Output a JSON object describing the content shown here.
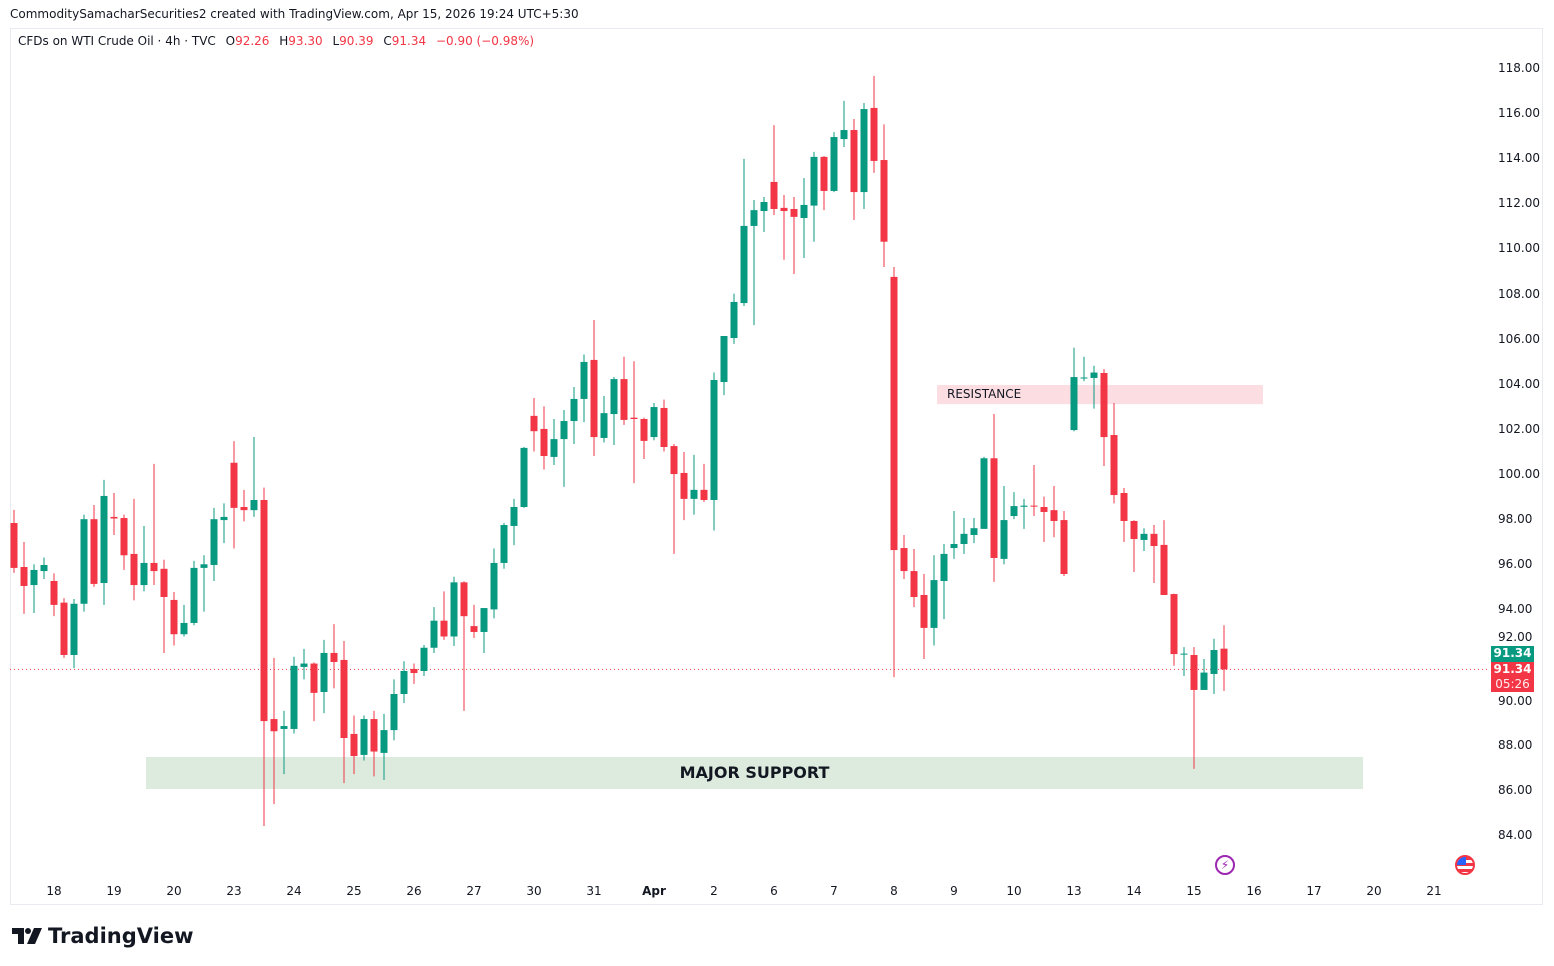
{
  "caption": "CommoditySamacharSecurities2 created with TradingView.com, Apr 15, 2026 19:24 UTC+5:30",
  "legend": {
    "symbol": "CFDs on WTI Crude Oil · 4h · TVC",
    "o_label": "O",
    "o": "92.26",
    "h_label": "H",
    "h": "93.30",
    "l_label": "L",
    "l": "90.39",
    "c_label": "C",
    "c": "91.34",
    "change": "−0.90 (−0.98%)"
  },
  "price_tags": {
    "bid": "91.34",
    "last": "91.34",
    "countdown": "05:26"
  },
  "logo_text": "TradingView",
  "colors": {
    "up": "#089981",
    "down": "#f23645",
    "resistance": "#fcdde2",
    "support": "#dcebdd"
  },
  "chart_data": {
    "type": "candlestick",
    "title": "CFDs on WTI Crude Oil · 4h · TVC",
    "ylim": [
      84,
      118
    ],
    "yticks": [
      "84.00",
      "86.00",
      "88.00",
      "90.00",
      "92.00",
      "94.00",
      "96.00",
      "98.00",
      "100.00",
      "102.00",
      "104.00",
      "106.00",
      "108.00",
      "110.00",
      "112.00",
      "114.00",
      "116.00",
      "118.00"
    ],
    "xticks": [
      {
        "label": "18",
        "bar": 4
      },
      {
        "label": "19",
        "bar": 10
      },
      {
        "label": "20",
        "bar": 16
      },
      {
        "label": "23",
        "bar": 22
      },
      {
        "label": "24",
        "bar": 28
      },
      {
        "label": "25",
        "bar": 34
      },
      {
        "label": "26",
        "bar": 40
      },
      {
        "label": "27",
        "bar": 46
      },
      {
        "label": "30",
        "bar": 52
      },
      {
        "label": "31",
        "bar": 58
      },
      {
        "label": "Apr",
        "bar": 64,
        "bold": true
      },
      {
        "label": "2",
        "bar": 70
      },
      {
        "label": "6",
        "bar": 76
      },
      {
        "label": "7",
        "bar": 82
      },
      {
        "label": "8",
        "bar": 88
      },
      {
        "label": "9",
        "bar": 94
      },
      {
        "label": "10",
        "bar": 100
      },
      {
        "label": "13",
        "bar": 106
      },
      {
        "label": "14",
        "bar": 112
      },
      {
        "label": "15",
        "bar": 118
      },
      {
        "label": "16",
        "bar": 124
      },
      {
        "label": "17",
        "bar": 130
      },
      {
        "label": "20",
        "bar": 136
      },
      {
        "label": "21",
        "bar": 142
      }
    ],
    "last_price": 91.34,
    "zones": [
      {
        "label": "RESISTANCE",
        "from": 103.1,
        "to": 103.95,
        "start_bar": 92.3,
        "end_bar": 124.9,
        "kind": "resistance"
      },
      {
        "label": "MAJOR SUPPORT",
        "from": 86.04,
        "to": 87.46,
        "start_bar": 13.2,
        "end_bar": 134.9,
        "kind": "support"
      }
    ],
    "ohlc": [
      [
        97.83,
        98.41,
        95.62,
        95.84
      ],
      [
        95.88,
        96.99,
        93.8,
        95.04
      ],
      [
        95.08,
        96.0,
        93.84,
        95.75
      ],
      [
        95.7,
        96.3,
        95.35,
        95.97
      ],
      [
        95.26,
        95.6,
        93.7,
        94.2
      ],
      [
        94.3,
        94.5,
        91.85,
        91.98
      ],
      [
        91.98,
        94.46,
        91.4,
        94.25
      ],
      [
        94.25,
        98.2,
        93.9,
        98.0
      ],
      [
        98.0,
        98.63,
        95.0,
        95.13
      ],
      [
        95.17,
        99.74,
        94.2,
        99.03
      ],
      [
        98.1,
        99.16,
        97.3,
        98.03
      ],
      [
        98.05,
        98.2,
        95.75,
        96.4
      ],
      [
        96.46,
        98.9,
        94.4,
        95.08
      ],
      [
        95.08,
        97.7,
        94.8,
        96.06
      ],
      [
        96.06,
        100.45,
        95.08,
        95.7
      ],
      [
        95.8,
        96.2,
        92.07,
        94.55
      ],
      [
        94.42,
        94.77,
        92.4,
        92.9
      ],
      [
        92.9,
        94.2,
        92.8,
        93.4
      ],
      [
        93.4,
        96.15,
        93.3,
        95.84
      ],
      [
        95.84,
        96.4,
        93.9,
        96.0
      ],
      [
        95.97,
        98.5,
        95.26,
        98.0
      ],
      [
        97.96,
        98.7,
        96.94,
        98.1
      ],
      [
        100.5,
        101.46,
        96.7,
        98.5
      ],
      [
        98.54,
        99.3,
        97.9,
        98.4
      ],
      [
        98.4,
        101.64,
        98.1,
        98.85
      ],
      [
        98.85,
        99.4,
        84.4,
        89.05
      ],
      [
        89.14,
        91.85,
        85.37,
        88.6
      ],
      [
        88.7,
        89.5,
        86.7,
        88.83
      ],
      [
        88.7,
        91.9,
        88.5,
        91.5
      ],
      [
        91.45,
        92.25,
        90.9,
        91.6
      ],
      [
        91.6,
        91.65,
        89.05,
        90.3
      ],
      [
        90.34,
        92.65,
        89.4,
        92.07
      ],
      [
        92.07,
        93.35,
        90.5,
        91.67
      ],
      [
        91.76,
        92.6,
        86.3,
        88.3
      ],
      [
        88.48,
        89.3,
        86.7,
        87.5
      ],
      [
        87.55,
        89.3,
        87.3,
        89.14
      ],
      [
        89.14,
        89.5,
        86.6,
        87.7
      ],
      [
        87.64,
        89.37,
        86.44,
        88.65
      ],
      [
        88.65,
        90.9,
        88.2,
        90.25
      ],
      [
        90.25,
        91.7,
        89.85,
        91.27
      ],
      [
        91.36,
        91.6,
        90.7,
        91.18
      ],
      [
        91.27,
        92.42,
        91.05,
        92.3
      ],
      [
        92.3,
        94.1,
        92.07,
        93.5
      ],
      [
        93.5,
        94.8,
        92.65,
        92.8
      ],
      [
        92.8,
        95.45,
        92.38,
        95.2
      ],
      [
        95.2,
        95.25,
        89.5,
        93.7
      ],
      [
        93.26,
        94.2,
        92.73,
        93.0
      ],
      [
        93.0,
        94.06,
        92.07,
        94.06
      ],
      [
        94.0,
        96.7,
        93.6,
        96.06
      ],
      [
        96.06,
        97.83,
        95.8,
        97.74
      ],
      [
        97.7,
        98.9,
        96.85,
        98.54
      ],
      [
        98.54,
        101.2,
        98.5,
        101.16
      ],
      [
        102.58,
        103.37,
        101.0,
        101.9
      ],
      [
        102.0,
        103.0,
        100.2,
        100.8
      ],
      [
        100.76,
        102.44,
        100.4,
        101.55
      ],
      [
        101.55,
        102.84,
        99.43,
        102.35
      ],
      [
        102.35,
        103.86,
        101.33,
        103.33
      ],
      [
        103.33,
        105.3,
        102.3,
        104.97
      ],
      [
        105.06,
        106.83,
        100.8,
        101.64
      ],
      [
        101.6,
        103.46,
        101.4,
        102.7
      ],
      [
        102.66,
        104.3,
        101.29,
        104.21
      ],
      [
        104.21,
        105.2,
        102.18,
        102.4
      ],
      [
        102.5,
        105.0,
        99.6,
        102.44
      ],
      [
        102.44,
        102.5,
        100.67,
        101.47
      ],
      [
        101.64,
        103.15,
        101.5,
        102.97
      ],
      [
        102.93,
        103.3,
        101.0,
        101.2
      ],
      [
        101.24,
        101.33,
        96.46,
        100.0
      ],
      [
        100.05,
        100.98,
        97.96,
        98.9
      ],
      [
        98.9,
        100.85,
        98.2,
        99.3
      ],
      [
        99.3,
        100.45,
        98.76,
        98.85
      ],
      [
        98.85,
        104.5,
        97.5,
        104.17
      ],
      [
        104.08,
        106.12,
        103.5,
        106.12
      ],
      [
        106.03,
        108.0,
        105.77,
        107.63
      ],
      [
        107.58,
        113.97,
        107.45,
        111.0
      ],
      [
        111.0,
        112.15,
        106.6,
        111.7
      ],
      [
        111.66,
        112.28,
        110.73,
        112.06
      ],
      [
        112.95,
        115.47,
        111.48,
        111.75
      ],
      [
        111.8,
        112.37,
        109.5,
        111.66
      ],
      [
        111.75,
        112.28,
        108.87,
        111.4
      ],
      [
        111.35,
        113.12,
        109.58,
        111.93
      ],
      [
        111.9,
        114.28,
        110.3,
        114.06
      ],
      [
        114.06,
        114.1,
        111.7,
        112.55
      ],
      [
        112.55,
        115.16,
        112.5,
        114.94
      ],
      [
        114.85,
        116.54,
        114.5,
        115.25
      ],
      [
        115.25,
        115.74,
        111.26,
        112.5
      ],
      [
        112.5,
        116.45,
        111.75,
        116.18
      ],
      [
        116.23,
        117.65,
        113.35,
        113.88
      ],
      [
        113.92,
        115.5,
        109.18,
        110.3
      ],
      [
        108.74,
        109.18,
        91.0,
        96.63
      ],
      [
        96.72,
        97.3,
        95.35,
        95.7
      ],
      [
        95.7,
        96.68,
        94.1,
        94.55
      ],
      [
        94.64,
        95.57,
        91.8,
        93.18
      ],
      [
        93.18,
        96.4,
        92.4,
        95.3
      ],
      [
        95.26,
        96.9,
        93.57,
        96.46
      ],
      [
        96.72,
        98.36,
        96.24,
        96.9
      ],
      [
        96.9,
        98.05,
        96.46,
        97.35
      ],
      [
        97.3,
        98.05,
        96.94,
        97.6
      ],
      [
        97.57,
        100.76,
        97.57,
        100.7
      ],
      [
        100.7,
        102.66,
        95.22,
        96.28
      ],
      [
        96.24,
        99.47,
        96.0,
        97.96
      ],
      [
        98.14,
        99.2,
        98.0,
        98.58
      ],
      [
        98.55,
        98.9,
        97.57,
        98.6
      ],
      [
        98.6,
        100.4,
        98.14,
        98.56
      ],
      [
        98.54,
        99.0,
        96.99,
        98.32
      ],
      [
        98.4,
        99.47,
        97.2,
        97.92
      ],
      [
        97.96,
        98.36,
        95.48,
        95.57
      ],
      [
        101.95,
        105.6,
        101.9,
        104.3
      ],
      [
        104.24,
        105.2,
        104.12,
        104.28
      ],
      [
        104.26,
        104.8,
        102.9,
        104.5
      ],
      [
        104.48,
        104.65,
        100.36,
        101.64
      ],
      [
        101.73,
        103.15,
        98.7,
        99.07
      ],
      [
        99.16,
        99.38,
        96.99,
        97.92
      ],
      [
        97.92,
        97.95,
        95.66,
        97.12
      ],
      [
        97.08,
        97.6,
        96.59,
        97.35
      ],
      [
        97.35,
        97.74,
        95.17,
        96.81
      ],
      [
        96.86,
        97.96,
        94.64,
        94.64
      ],
      [
        94.68,
        94.7,
        91.5,
        92.02
      ],
      [
        92.0,
        92.33,
        91.05,
        92.04
      ],
      [
        91.98,
        92.33,
        86.93,
        90.43
      ],
      [
        90.43,
        91.8,
        90.43,
        91.2
      ],
      [
        91.14,
        92.7,
        90.25,
        92.2
      ],
      [
        92.26,
        93.3,
        90.39,
        91.34
      ]
    ]
  }
}
